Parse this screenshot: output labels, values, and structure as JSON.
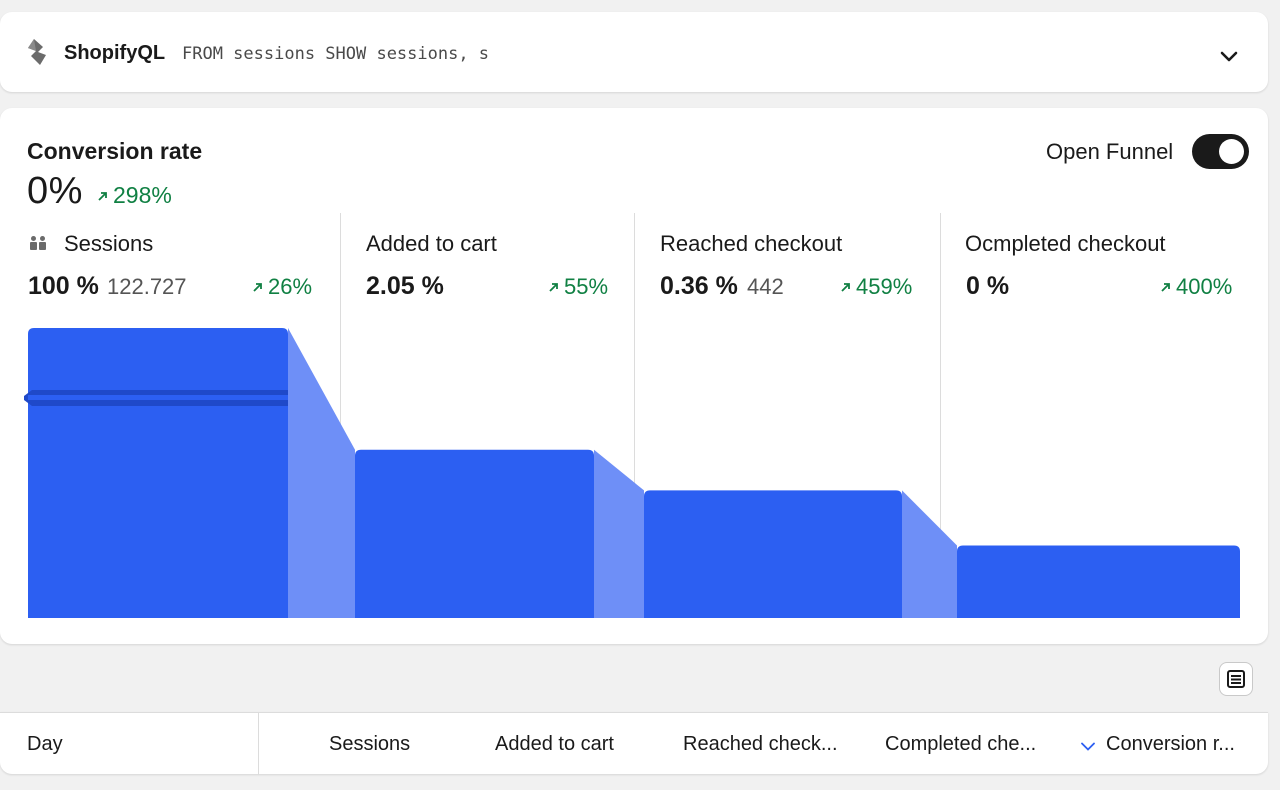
{
  "query_bar": {
    "brand": "ShopifyQL",
    "query": "FROM sessions SHOW sessions, s"
  },
  "conversion": {
    "title": "Conversion rate",
    "value": "0%",
    "change": "298%"
  },
  "toggle": {
    "label": "Open Funnel",
    "on": true
  },
  "stages": [
    {
      "label": "Sessions",
      "pct": "100 %",
      "count": "122.727",
      "change": "26%"
    },
    {
      "label": "Added to cart",
      "pct": "2.05 %",
      "count": "",
      "change": "55%"
    },
    {
      "label": "Reached checkout",
      "pct": "0.36 %",
      "count": "442",
      "change": "459%"
    },
    {
      "label": "Ocmpleted checkout",
      "pct": "0 %",
      "count": "",
      "change": "400%"
    }
  ],
  "funnel_levels": [
    1.0,
    0.58,
    0.44,
    0.25
  ],
  "colors": {
    "bar": "#2c5ff2",
    "connector": "#6e8ff7",
    "positive": "#108043",
    "toggle_bg": "#1a1a1a"
  },
  "table": {
    "columns": [
      "Day",
      "Sessions",
      "Added to cart",
      "Reached check...",
      "Completed che...",
      "Conversion r..."
    ],
    "sorted_column": "Conversion r..."
  },
  "icons": {
    "logo": "shopifyql-logo-icon",
    "expand": "chevron-down-icon",
    "sessions": "people-icon",
    "trend": "arrow-up-right-icon",
    "table_toggle": "table-icon",
    "sort": "sort-chevron-down-icon"
  }
}
